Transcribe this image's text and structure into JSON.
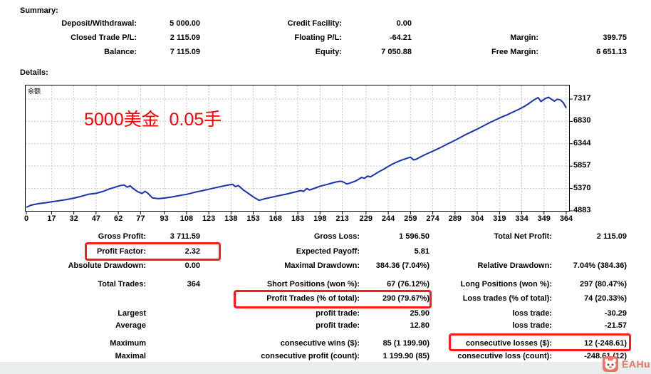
{
  "summary": {
    "heading": "Summary:",
    "rows": [
      {
        "l1": "Deposit/Withdrawal:",
        "v1": "5 000.00",
        "l2": "Credit Facility:",
        "v2": "0.00",
        "l3": "",
        "v3": ""
      },
      {
        "l1": "Closed Trade P/L:",
        "v1": "2 115.09",
        "l2": "Floating P/L:",
        "v2": "-64.21",
        "l3": "Margin:",
        "v3": "399.75"
      },
      {
        "l1": "Balance:",
        "v1": "7 115.09",
        "l2": "Equity:",
        "v2": "7 050.88",
        "l3": "Free Margin:",
        "v3": "6 651.13"
      }
    ]
  },
  "details": {
    "heading": "Details:",
    "rows": [
      {
        "l1": "Gross Profit:",
        "v1": "3 711.59",
        "l2": "Gross Loss:",
        "v2": "1 596.50",
        "l3": "Total Net Profit:",
        "v3": "2 115.09"
      },
      {
        "l1": "Profit Factor:",
        "v1": "2.32",
        "l2": "Expected Payoff:",
        "v2": "5.81",
        "l3": "",
        "v3": ""
      },
      {
        "l1": "Absolute Drawdown:",
        "v1": "0.00",
        "l2": "Maximal Drawdown:",
        "v2": "384.36 (7.04%)",
        "l3": "Relative Drawdown:",
        "v3": "7.04% (384.36)"
      },
      {
        "l1": "Total Trades:",
        "v1": "364",
        "l2": "Short Positions (won %):",
        "v2": "67 (76.12%)",
        "l3": "Long Positions (won %):",
        "v3": "297 (80.47%)"
      },
      {
        "l1": "",
        "v1": "",
        "l2": "Profit Trades (% of total):",
        "v2": "290 (79.67%)",
        "l3": "Loss trades (% of total):",
        "v3": "74 (20.33%)"
      },
      {
        "l1": "Largest",
        "v1": "",
        "l2": "profit trade:",
        "v2": "25.90",
        "l3": "loss trade:",
        "v3": "-30.29"
      },
      {
        "l1": "Average",
        "v1": "",
        "l2": "profit trade:",
        "v2": "12.80",
        "l3": "loss trade:",
        "v3": "-21.57"
      },
      {
        "l1": "Maximum",
        "v1": "",
        "l2": "consecutive wins ($):",
        "v2": "85 (1 199.90)",
        "l3": "consecutive losses ($):",
        "v3": "12 (-248.61)"
      },
      {
        "l1": "Maximal",
        "v1": "",
        "l2": "consecutive profit (count):",
        "v2": "1 199.90 (85)",
        "l3": "consecutive loss (count):",
        "v3": "-248.61 (12)"
      }
    ]
  },
  "chart": {
    "balance_label": "余额",
    "note": "5000美金  0.05手",
    "note_color": "#ff0000"
  },
  "chart_data": {
    "type": "line",
    "title": "余额",
    "xlabel": "",
    "ylabel": "",
    "legend_position": "none",
    "grid": true,
    "xlim": [
      0,
      364
    ],
    "ylim": [
      4883,
      7317
    ],
    "x_ticks": [
      0,
      17,
      32,
      47,
      62,
      77,
      93,
      108,
      123,
      138,
      153,
      168,
      183,
      198,
      213,
      229,
      244,
      259,
      274,
      289,
      304,
      319,
      334,
      349,
      364
    ],
    "y_ticks": [
      7317,
      6830,
      6344,
      5857,
      5370,
      4883
    ],
    "line_color": "#1733ad",
    "grid_color": "#c9c9c9",
    "series": [
      {
        "name": "Balance",
        "points": [
          [
            0,
            4960
          ],
          [
            3,
            5005
          ],
          [
            8,
            5040
          ],
          [
            13,
            5060
          ],
          [
            17,
            5080
          ],
          [
            22,
            5105
          ],
          [
            27,
            5130
          ],
          [
            32,
            5160
          ],
          [
            37,
            5200
          ],
          [
            42,
            5245
          ],
          [
            47,
            5265
          ],
          [
            52,
            5310
          ],
          [
            56,
            5360
          ],
          [
            60,
            5400
          ],
          [
            63,
            5430
          ],
          [
            66,
            5445
          ],
          [
            68,
            5400
          ],
          [
            70,
            5428
          ],
          [
            72,
            5370
          ],
          [
            75,
            5300
          ],
          [
            78,
            5262
          ],
          [
            80,
            5308
          ],
          [
            82,
            5265
          ],
          [
            85,
            5165
          ],
          [
            89,
            5148
          ],
          [
            93,
            5162
          ],
          [
            98,
            5185
          ],
          [
            103,
            5215
          ],
          [
            108,
            5242
          ],
          [
            114,
            5290
          ],
          [
            119,
            5325
          ],
          [
            123,
            5352
          ],
          [
            128,
            5390
          ],
          [
            133,
            5425
          ],
          [
            137,
            5450
          ],
          [
            139,
            5462
          ],
          [
            141,
            5412
          ],
          [
            143,
            5435
          ],
          [
            146,
            5345
          ],
          [
            150,
            5255
          ],
          [
            154,
            5165
          ],
          [
            157,
            5112
          ],
          [
            160,
            5140
          ],
          [
            164,
            5170
          ],
          [
            169,
            5205
          ],
          [
            175,
            5245
          ],
          [
            181,
            5292
          ],
          [
            185,
            5325
          ],
          [
            187,
            5308
          ],
          [
            189,
            5368
          ],
          [
            191,
            5338
          ],
          [
            194,
            5372
          ],
          [
            198,
            5420
          ],
          [
            202,
            5452
          ],
          [
            206,
            5488
          ],
          [
            209,
            5512
          ],
          [
            212,
            5528
          ],
          [
            214,
            5508
          ],
          [
            216,
            5468
          ],
          [
            219,
            5497
          ],
          [
            222,
            5532
          ],
          [
            224,
            5572
          ],
          [
            226,
            5612
          ],
          [
            228,
            5592
          ],
          [
            230,
            5640
          ],
          [
            232,
            5622
          ],
          [
            235,
            5682
          ],
          [
            238,
            5740
          ],
          [
            241,
            5792
          ],
          [
            244,
            5850
          ],
          [
            247,
            5905
          ],
          [
            250,
            5948
          ],
          [
            253,
            5988
          ],
          [
            256,
            6020
          ],
          [
            259,
            6052
          ],
          [
            261,
            5992
          ],
          [
            263,
            6008
          ],
          [
            266,
            6062
          ],
          [
            269,
            6110
          ],
          [
            272,
            6152
          ],
          [
            276,
            6212
          ],
          [
            280,
            6272
          ],
          [
            284,
            6340
          ],
          [
            288,
            6402
          ],
          [
            292,
            6470
          ],
          [
            296,
            6540
          ],
          [
            300,
            6600
          ],
          [
            304,
            6662
          ],
          [
            308,
            6730
          ],
          [
            312,
            6798
          ],
          [
            316,
            6858
          ],
          [
            320,
            6918
          ],
          [
            324,
            6972
          ],
          [
            328,
            7032
          ],
          [
            332,
            7092
          ],
          [
            336,
            7160
          ],
          [
            339,
            7222
          ],
          [
            342,
            7292
          ],
          [
            345,
            7348
          ],
          [
            347,
            7262
          ],
          [
            350,
            7330
          ],
          [
            352,
            7355
          ],
          [
            354,
            7312
          ],
          [
            356,
            7270
          ],
          [
            358,
            7312
          ],
          [
            360,
            7298
          ],
          [
            362,
            7240
          ],
          [
            364,
            7120
          ]
        ]
      }
    ]
  },
  "highlights": {
    "color": "#ff1a1a"
  },
  "watermark": {
    "text": "EAHub",
    "color": "#ee7365"
  }
}
